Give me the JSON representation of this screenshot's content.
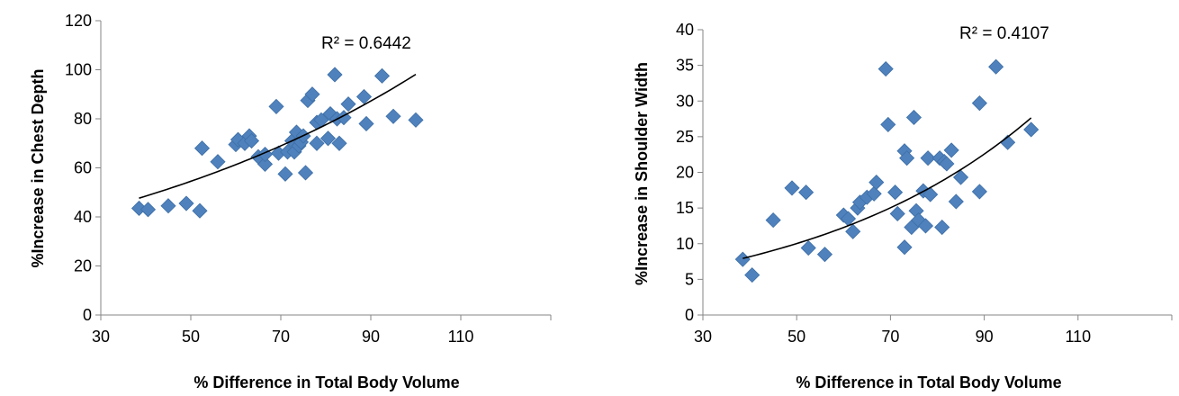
{
  "chart_data": [
    {
      "type": "scatter",
      "title": "",
      "xlabel": "% Difference in Total Body Volume",
      "ylabel": "%Increase in Chest Depth",
      "xlim": [
        30,
        130
      ],
      "ylim": [
        0,
        120
      ],
      "xticks": [
        30,
        50,
        70,
        90,
        110
      ],
      "yticks": [
        0,
        20,
        40,
        60,
        80,
        100,
        120
      ],
      "x_tick_labels": [
        "30",
        "50",
        "70",
        "90",
        "110"
      ],
      "y_tick_labels": [
        "0",
        "20",
        "40",
        "60",
        "80",
        "100",
        "120"
      ],
      "grid": false,
      "legend": "none",
      "annotation": "R² = 0.6442",
      "marker_color": "#4F81BD",
      "trendline": {
        "type": "exponential",
        "a": 30.3,
        "b": 0.01175,
        "x_range": [
          38.5,
          100
        ],
        "color": "#000000"
      },
      "points": [
        [
          38.5,
          43.5
        ],
        [
          40.5,
          43.0
        ],
        [
          45.0,
          44.5
        ],
        [
          49.0,
          45.5
        ],
        [
          52.0,
          42.5
        ],
        [
          52.5,
          68.0
        ],
        [
          56.0,
          62.5
        ],
        [
          60.0,
          69.5
        ],
        [
          60.5,
          71.5
        ],
        [
          62.0,
          70.0
        ],
        [
          63.0,
          73.0
        ],
        [
          63.5,
          71.0
        ],
        [
          65.0,
          64.5
        ],
        [
          66.5,
          61.5
        ],
        [
          66.5,
          65.5
        ],
        [
          69.0,
          85.0
        ],
        [
          69.5,
          66.0
        ],
        [
          71.0,
          57.5
        ],
        [
          71.5,
          66.5
        ],
        [
          72.5,
          71.0
        ],
        [
          73.0,
          66.5
        ],
        [
          73.5,
          74.5
        ],
        [
          74.0,
          69.0
        ],
        [
          74.5,
          70.5
        ],
        [
          75.0,
          73.0
        ],
        [
          75.5,
          58.0
        ],
        [
          76.0,
          87.5
        ],
        [
          77.0,
          90.0
        ],
        [
          78.0,
          70.0
        ],
        [
          78.0,
          78.5
        ],
        [
          79.0,
          79.5
        ],
        [
          80.5,
          72.0
        ],
        [
          81.0,
          82.0
        ],
        [
          82.0,
          98.0
        ],
        [
          82.5,
          80.0
        ],
        [
          83.0,
          70.0
        ],
        [
          84.0,
          80.5
        ],
        [
          85.0,
          86.0
        ],
        [
          88.5,
          89.0
        ],
        [
          89.0,
          78.0
        ],
        [
          92.5,
          97.5
        ],
        [
          95.0,
          81.0
        ],
        [
          100.0,
          79.5
        ]
      ]
    },
    {
      "type": "scatter",
      "title": "",
      "xlabel": "% Difference in Total Body Volume",
      "ylabel": "%Increase in Shoulder Width",
      "xlim": [
        30,
        130
      ],
      "ylim": [
        0,
        40
      ],
      "xticks": [
        30,
        50,
        70,
        90,
        110
      ],
      "yticks": [
        0,
        5,
        10,
        15,
        20,
        25,
        30,
        35,
        40
      ],
      "x_tick_labels": [
        "30",
        "50",
        "70",
        "90",
        "110"
      ],
      "y_tick_labels": [
        "0",
        "5",
        "10",
        "15",
        "20",
        "25",
        "30",
        "35",
        "40"
      ],
      "grid": false,
      "legend": "none",
      "annotation": "R² = 0.4107",
      "marker_color": "#4F81BD",
      "trendline": {
        "type": "exponential",
        "a": 3.63,
        "b": 0.0203,
        "x_range": [
          38.5,
          100
        ],
        "color": "#000000"
      },
      "points": [
        [
          38.5,
          7.8
        ],
        [
          40.5,
          5.6
        ],
        [
          45.0,
          13.3
        ],
        [
          49.0,
          17.8
        ],
        [
          52.0,
          17.2
        ],
        [
          52.5,
          9.4
        ],
        [
          56.0,
          8.5
        ],
        [
          60.0,
          14.0
        ],
        [
          61.0,
          13.5
        ],
        [
          62.0,
          11.7
        ],
        [
          63.0,
          15.0
        ],
        [
          63.5,
          15.8
        ],
        [
          65.0,
          16.5
        ],
        [
          66.5,
          17.0
        ],
        [
          67.0,
          18.6
        ],
        [
          69.0,
          34.5
        ],
        [
          69.5,
          26.7
        ],
        [
          71.0,
          17.2
        ],
        [
          71.5,
          14.2
        ],
        [
          73.0,
          9.5
        ],
        [
          73.0,
          23.0
        ],
        [
          73.5,
          22.0
        ],
        [
          74.5,
          12.3
        ],
        [
          75.0,
          27.7
        ],
        [
          75.5,
          14.6
        ],
        [
          76.0,
          13.3
        ],
        [
          77.0,
          17.4
        ],
        [
          77.5,
          12.5
        ],
        [
          78.0,
          22.0
        ],
        [
          78.5,
          16.9
        ],
        [
          80.5,
          22.0
        ],
        [
          81.0,
          12.3
        ],
        [
          81.5,
          21.5
        ],
        [
          82.0,
          21.2
        ],
        [
          83.0,
          23.1
        ],
        [
          84.0,
          15.9
        ],
        [
          85.0,
          19.3
        ],
        [
          89.0,
          29.7
        ],
        [
          89.0,
          17.3
        ],
        [
          92.5,
          34.8
        ],
        [
          95.0,
          24.2
        ],
        [
          100.0,
          26.0
        ]
      ]
    }
  ]
}
